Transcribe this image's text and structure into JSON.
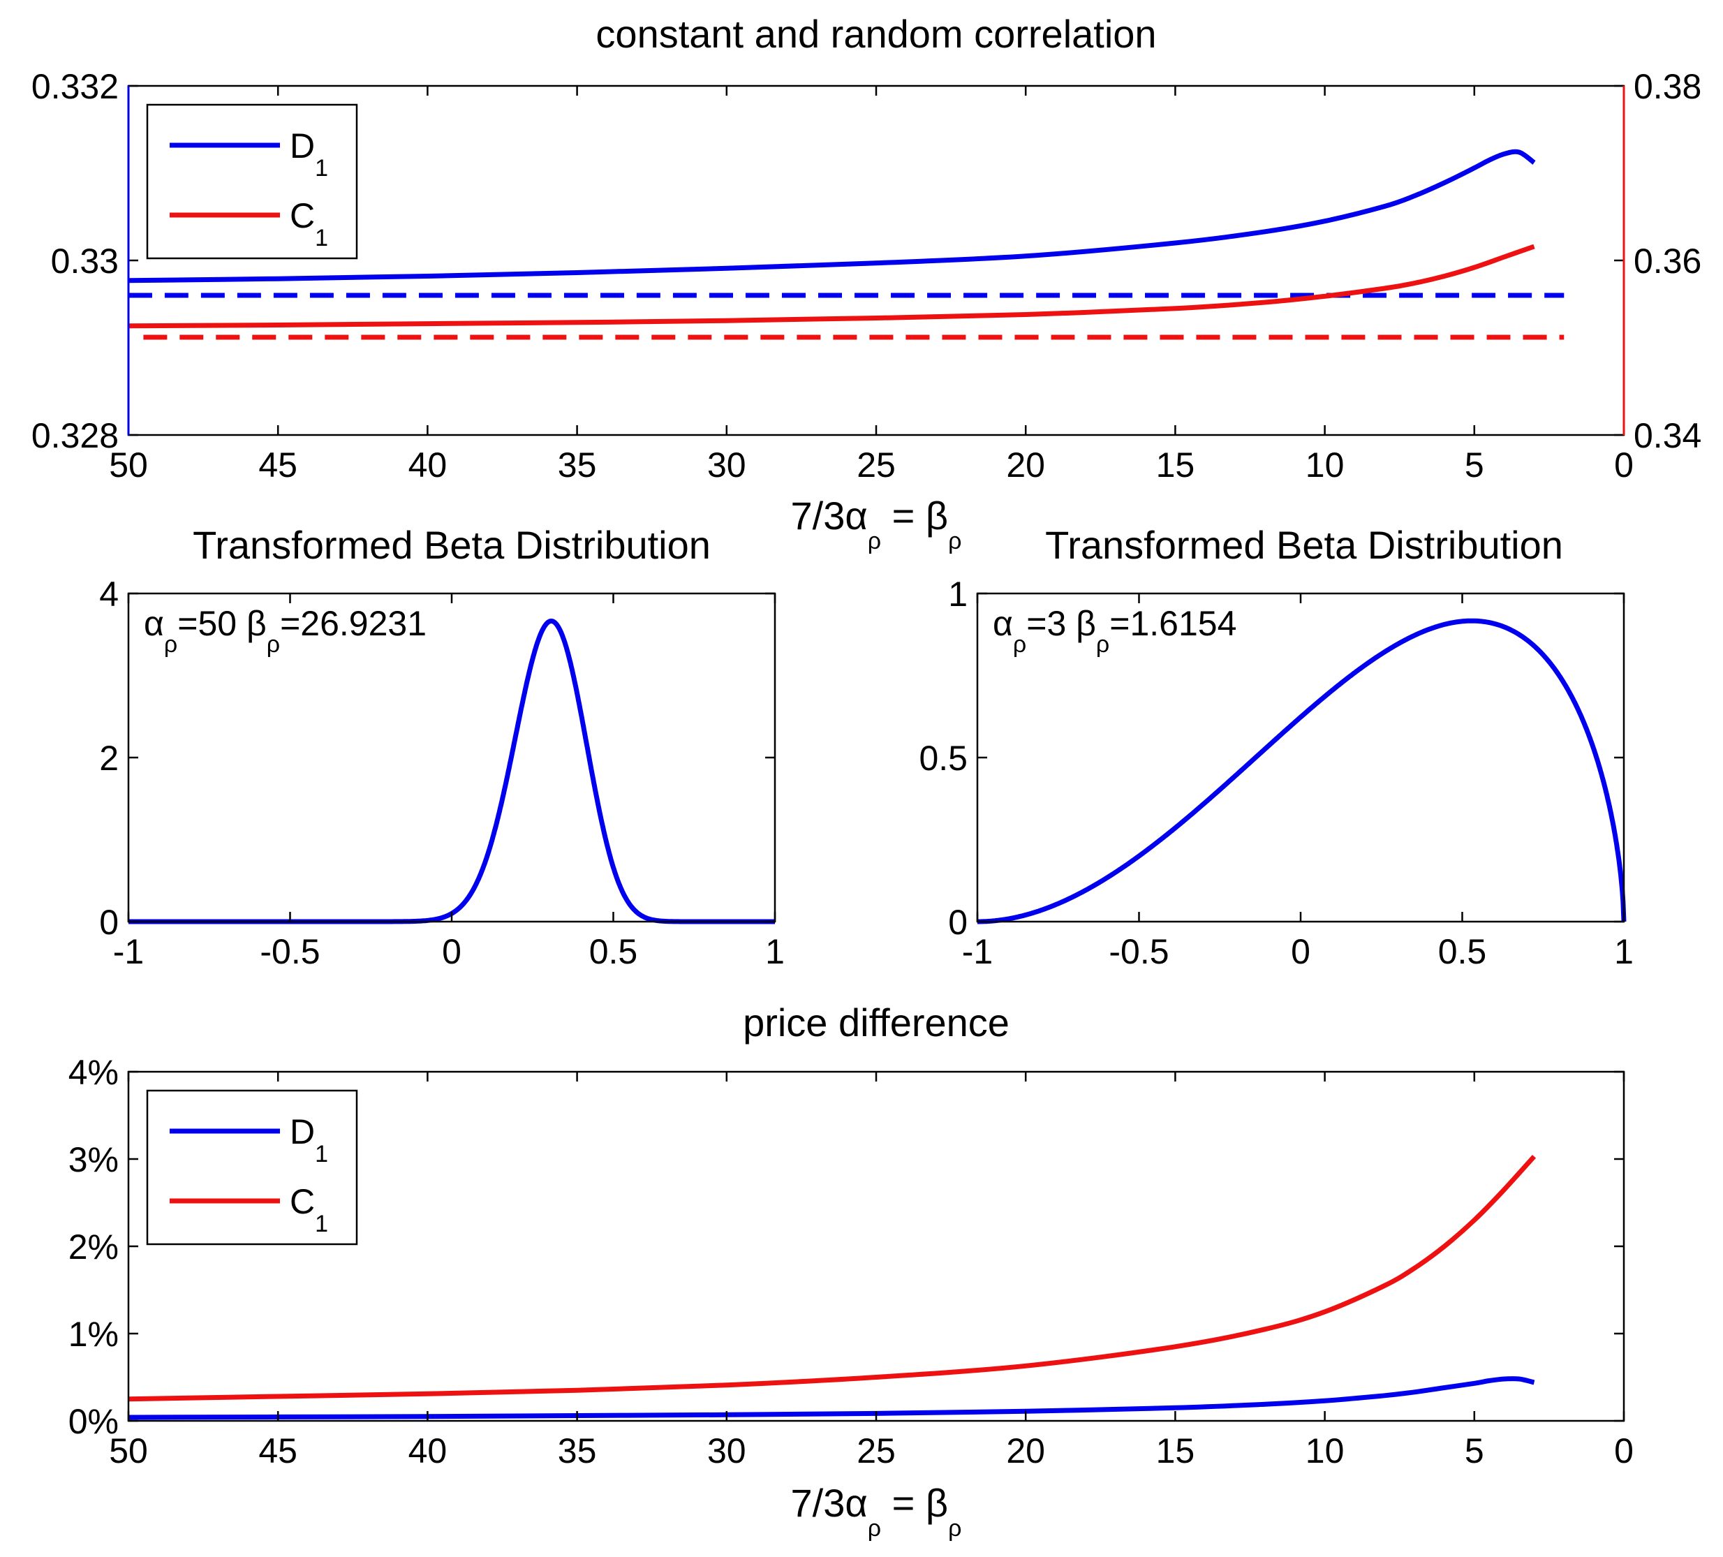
{
  "colors": {
    "d1": "#0000ee",
    "c1": "#ee1111",
    "axis": "#000000",
    "background": "#ffffff"
  },
  "chart_data": [
    {
      "id": "top",
      "type": "line",
      "title": "constant and random correlation",
      "xlabel": "7/3α_ρ = β_ρ",
      "xlabel_parts": {
        "left": "7/3α",
        "left_sub": "ρ",
        "mid": " = β",
        "right_sub": "ρ"
      },
      "x_reversed": true,
      "xlim": [
        50,
        0
      ],
      "x_ticks": [
        50,
        45,
        40,
        35,
        30,
        25,
        20,
        15,
        10,
        5,
        0
      ],
      "x_tick_labels": [
        "50",
        "45",
        "40",
        "35",
        "30",
        "25",
        "20",
        "15",
        "10",
        "5",
        "0"
      ],
      "ylim_left": [
        0.328,
        0.332
      ],
      "y_ticks_left": [
        0.328,
        0.33,
        0.332
      ],
      "y_tick_labels_left": [
        "0.328",
        "0.33",
        "0.332"
      ],
      "ylim_right": [
        0.34,
        0.38
      ],
      "y_ticks_right": [
        0.34,
        0.36,
        0.38
      ],
      "y_tick_labels_right": [
        "0.34",
        "0.36",
        "0.38"
      ],
      "legend": {
        "position": "top-left",
        "entries": [
          {
            "label": "D",
            "sub": "1",
            "color_key": "d1"
          },
          {
            "label": "C",
            "sub": "1",
            "color_key": "c1"
          }
        ]
      },
      "series": [
        {
          "name": "D1",
          "axis": "left",
          "style": "solid",
          "color_key": "d1",
          "x": [
            50,
            45,
            40,
            35,
            30,
            25,
            20,
            15,
            12,
            10,
            8,
            7,
            6,
            5,
            4.5,
            4,
            3.5,
            3
          ],
          "y": [
            0.32977,
            0.32979,
            0.32982,
            0.32986,
            0.32991,
            0.32997,
            0.33005,
            0.3302,
            0.33033,
            0.33045,
            0.33062,
            0.33074,
            0.33089,
            0.33106,
            0.33115,
            0.33122,
            0.33124,
            0.33112
          ]
        },
        {
          "name": "D1 constant",
          "axis": "left",
          "style": "dashed",
          "color_key": "d1",
          "x": [
            50,
            2
          ],
          "y": [
            0.3296,
            0.3296
          ]
        },
        {
          "name": "C1",
          "axis": "right",
          "style": "solid",
          "color_key": "c1",
          "x": [
            50,
            45,
            40,
            35,
            30,
            25,
            20,
            15,
            12,
            10,
            8,
            7,
            6,
            5,
            4,
            3
          ],
          "y": [
            0.3525,
            0.3526,
            0.35275,
            0.3529,
            0.3531,
            0.3534,
            0.3538,
            0.3545,
            0.3552,
            0.3559,
            0.3568,
            0.3574,
            0.3582,
            0.3592,
            0.3604,
            0.3616
          ]
        },
        {
          "name": "C1 constant",
          "axis": "right",
          "style": "dashed",
          "color_key": "c1",
          "x": [
            49.5,
            2
          ],
          "y": [
            0.3512,
            0.3512
          ]
        }
      ]
    },
    {
      "id": "mid-left",
      "type": "line",
      "title": "Transformed Beta Distribution",
      "annotation": {
        "alpha_value": "=50",
        "beta_value": "=26.9231",
        "sub": "ρ"
      },
      "xlim": [
        -1,
        1
      ],
      "x_ticks": [
        -1,
        -0.5,
        0,
        0.5,
        1
      ],
      "x_tick_labels": [
        "-1",
        "-0.5",
        "0",
        "0.5",
        "1"
      ],
      "ylim": [
        0,
        4
      ],
      "y_ticks": [
        0,
        2,
        4
      ],
      "y_tick_labels": [
        "0",
        "2",
        "4"
      ],
      "series": [
        {
          "name": "density α=50 β=26.9231",
          "color_key": "d1",
          "density": {
            "alpha": 50,
            "beta": 26.9231
          }
        }
      ]
    },
    {
      "id": "mid-right",
      "type": "line",
      "title": "Transformed Beta Distribution",
      "annotation": {
        "alpha_value": "=3",
        "beta_value": "=1.6154",
        "sub": "ρ"
      },
      "xlim": [
        -1,
        1
      ],
      "x_ticks": [
        -1,
        -0.5,
        0,
        0.5,
        1
      ],
      "x_tick_labels": [
        "-1",
        "-0.5",
        "0",
        "0.5",
        "1"
      ],
      "ylim": [
        0,
        1
      ],
      "y_ticks": [
        0,
        0.5,
        1
      ],
      "y_tick_labels": [
        "0",
        "0.5",
        "1"
      ],
      "series": [
        {
          "name": "density α=3 β=1.6154",
          "color_key": "d1",
          "density": {
            "alpha": 3,
            "beta": 1.6154
          }
        }
      ]
    },
    {
      "id": "bottom",
      "type": "line",
      "title": "price difference",
      "xlabel": "7/3α_ρ = β_ρ",
      "xlabel_parts": {
        "left": "7/3α",
        "left_sub": "ρ",
        "mid": " = β",
        "right_sub": "ρ"
      },
      "x_reversed": true,
      "xlim": [
        50,
        0
      ],
      "x_ticks": [
        50,
        45,
        40,
        35,
        30,
        25,
        20,
        15,
        10,
        5,
        0
      ],
      "x_tick_labels": [
        "50",
        "45",
        "40",
        "35",
        "30",
        "25",
        "20",
        "15",
        "10",
        "5",
        "0"
      ],
      "ylim": [
        0,
        4
      ],
      "y_ticks": [
        0,
        1,
        2,
        3,
        4
      ],
      "y_tick_labels": [
        "0%",
        "1%",
        "2%",
        "3%",
        "4%"
      ],
      "legend": {
        "position": "top-left",
        "entries": [
          {
            "label": "D",
            "sub": "1",
            "color_key": "d1"
          },
          {
            "label": "C",
            "sub": "1",
            "color_key": "c1"
          }
        ]
      },
      "series": [
        {
          "name": "D1",
          "color_key": "d1",
          "x": [
            50,
            45,
            40,
            35,
            30,
            25,
            20,
            15,
            12,
            10,
            8,
            7,
            6,
            5,
            4.5,
            4,
            3.5,
            3
          ],
          "y": [
            0.04,
            0.045,
            0.05,
            0.06,
            0.07,
            0.085,
            0.11,
            0.15,
            0.19,
            0.23,
            0.29,
            0.33,
            0.38,
            0.43,
            0.46,
            0.48,
            0.48,
            0.44
          ]
        },
        {
          "name": "C1",
          "color_key": "c1",
          "x": [
            50,
            45,
            40,
            35,
            30,
            25,
            20,
            15,
            12,
            10,
            8,
            7,
            6,
            5,
            4,
            3
          ],
          "y": [
            0.25,
            0.28,
            0.31,
            0.35,
            0.41,
            0.5,
            0.63,
            0.85,
            1.05,
            1.25,
            1.55,
            1.75,
            2.0,
            2.3,
            2.65,
            3.03
          ]
        }
      ]
    }
  ]
}
